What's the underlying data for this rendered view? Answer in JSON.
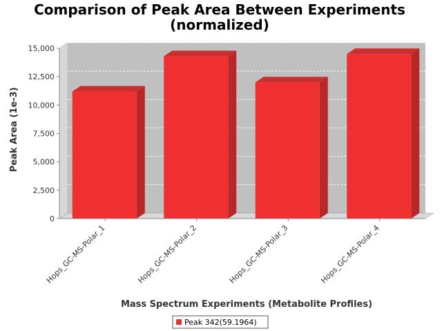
{
  "chart_data": {
    "type": "bar",
    "title": "Comparison of Peak Area Between Experiments",
    "subtitle": "(normalized)",
    "xlabel": "Mass Spectrum Experiments (Metabolite Profiles)",
    "ylabel": "Peak Area (1e-3)",
    "categories": [
      "Hops_GC-MS-Polar_1",
      "Hops_GC-MS-Polar_2",
      "Hops_GC-MS-Polar_3",
      "Hops_GC-MS-Polar_4"
    ],
    "series": [
      {
        "name": "Peak 342(59.1964)",
        "values": [
          11200,
          14300,
          12000,
          14500
        ],
        "color": "#f03030"
      }
    ],
    "ylim": [
      0,
      15000
    ],
    "yticks": [
      0,
      2500,
      5000,
      7500,
      10000,
      12500,
      15000
    ],
    "ytick_labels": [
      "0",
      "2,500",
      "5,000",
      "7,500",
      "10,000",
      "12,500",
      "15,000"
    ],
    "grid": true,
    "legend_position": "bottom",
    "colors": {
      "plot_background": "#c0c0c0",
      "bar": "#f03030",
      "bar_side": "#b82828",
      "bar_top": "#c83030"
    }
  }
}
